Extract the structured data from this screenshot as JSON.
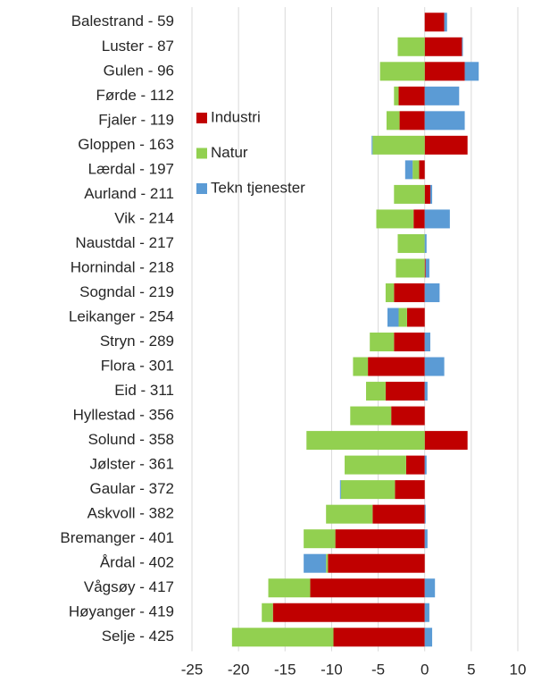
{
  "chart_data": {
    "type": "stacked_barh",
    "categories": [
      "Balestrand - 59",
      "Luster - 87",
      "Gulen - 96",
      "Førde - 112",
      "Fjaler - 119",
      "Gloppen - 163",
      "Lærdal - 197",
      "Aurland - 211",
      "Vik - 214",
      "Naustdal - 217",
      "Hornindal - 218",
      "Sogndal - 219",
      "Leikanger - 254",
      "Stryn - 289",
      "Flora - 301",
      "Eid - 311",
      "Hyllestad - 356",
      "Solund - 358",
      "Jølster - 361",
      "Gaular - 372",
      "Askvoll - 382",
      "Bremanger - 401",
      "Årdal - 402",
      "Vågsøy - 417",
      "Høyanger - 419",
      "Selje - 425"
    ],
    "series": [
      {
        "name": "Industri",
        "color": "#c00000",
        "values": [
          2.1,
          4.0,
          4.3,
          -2.8,
          -2.7,
          4.6,
          -0.6,
          0.6,
          -1.2,
          0,
          0.1,
          -3.3,
          -1.9,
          -3.3,
          -6.1,
          -4.2,
          -3.6,
          4.6,
          -2.0,
          -3.2,
          -5.6,
          -9.6,
          -10.4,
          -12.3,
          -16.3,
          -9.8
        ]
      },
      {
        "name": "Natur",
        "color": "#92d050",
        "values": [
          0,
          -2.9,
          -4.8,
          -0.5,
          -1.4,
          -5.6,
          -0.7,
          -3.3,
          -4.0,
          -2.9,
          -3.1,
          -0.9,
          -0.9,
          -2.6,
          -1.6,
          -2.1,
          -4.4,
          -12.7,
          -6.6,
          -5.8,
          -5.0,
          -3.4,
          -0.2,
          -4.5,
          -1.2,
          -10.9
        ]
      },
      {
        "name": "Tekn tjenester",
        "color": "#5b9bd5",
        "values": [
          0.3,
          0.1,
          1.5,
          3.7,
          4.3,
          -0.1,
          -0.8,
          0.2,
          2.7,
          0.2,
          0.4,
          1.6,
          -1.2,
          0.6,
          2.1,
          0.3,
          0,
          0,
          0.2,
          -0.1,
          0.1,
          0.3,
          -2.4,
          1.1,
          0.5,
          0.8
        ]
      }
    ],
    "xlim": [
      -25,
      10
    ],
    "xticks": [
      -25,
      -20,
      -15,
      -10,
      -5,
      0,
      5,
      10
    ],
    "grid": true,
    "legend": "upper left"
  }
}
